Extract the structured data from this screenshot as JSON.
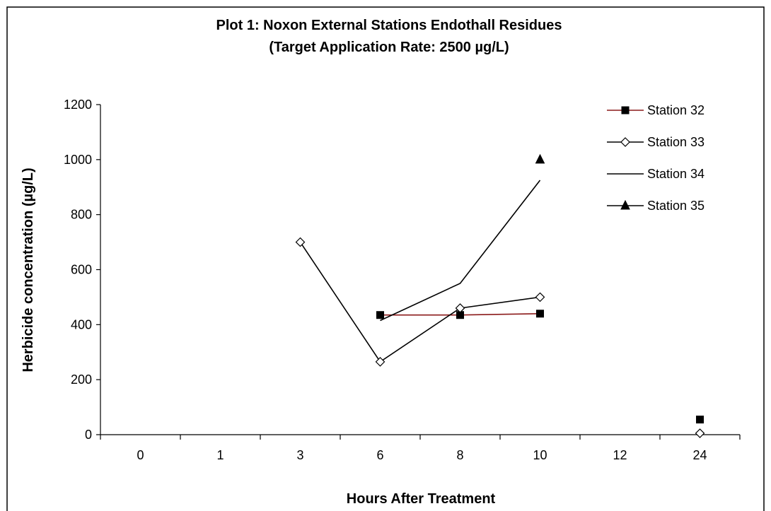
{
  "chart_data": {
    "type": "line",
    "title": "Plot 1: Noxon External Stations Endothall Residues",
    "subtitle": "(Target Application Rate: 2500 µg/L)",
    "xlabel": "Hours After Treatment",
    "ylabel": "Herbicide concentration (µg/L)",
    "categories": [
      "0",
      "1",
      "3",
      "6",
      "8",
      "10",
      "12",
      "24"
    ],
    "y_ticks": [
      "0",
      "200",
      "400",
      "600",
      "800",
      "1000",
      "1200"
    ],
    "ylim": [
      0,
      1200
    ],
    "grid": false,
    "legend_position": "right",
    "series": [
      {
        "name": "Station 32",
        "color": "#8b1a1a",
        "marker": "square",
        "values": [
          null,
          null,
          null,
          435,
          435,
          440,
          null,
          55
        ]
      },
      {
        "name": "Station 33",
        "color": "#000000",
        "marker": "diamond",
        "values": [
          null,
          null,
          700,
          265,
          460,
          500,
          null,
          5
        ]
      },
      {
        "name": "Station 34",
        "color": "#000000",
        "marker": "none",
        "values": [
          null,
          null,
          null,
          415,
          550,
          925,
          null,
          null
        ]
      },
      {
        "name": "Station 35",
        "color": "#000000",
        "marker": "triangle",
        "values": [
          null,
          null,
          null,
          null,
          null,
          1000,
          null,
          null
        ]
      }
    ]
  }
}
